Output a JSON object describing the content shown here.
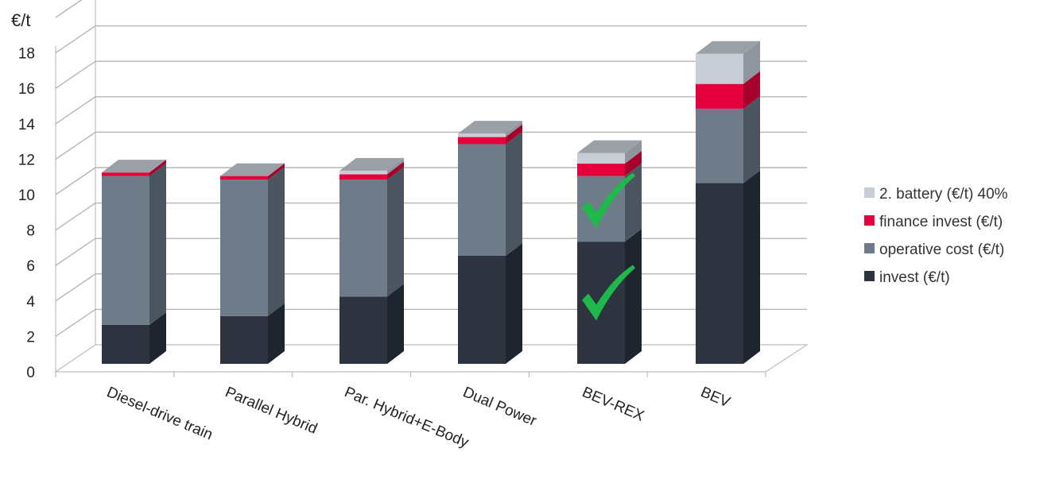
{
  "chart_data": {
    "type": "bar",
    "stacked": true,
    "three_d": true,
    "ylabel": "€/t",
    "ylim": [
      0,
      18
    ],
    "yticks": [
      0,
      2,
      4,
      6,
      8,
      10,
      12,
      14,
      16,
      18
    ],
    "grid": true,
    "legend_position": "right",
    "categories": [
      "Diesel-drive train",
      "Parallel Hybrid",
      "Par. Hybrid+E-Body",
      "Dual Power",
      "BEV-REX",
      "BEV"
    ],
    "series": [
      {
        "name": "invest (€/t)",
        "color": "#2d3440",
        "side_color": "#1f252e",
        "values": [
          2.2,
          2.7,
          3.8,
          6.1,
          6.9,
          10.2
        ]
      },
      {
        "name": "operative cost (€/t)",
        "color": "#6e7c8a",
        "side_color": "#4b555f",
        "values": [
          8.4,
          7.7,
          6.6,
          6.3,
          3.7,
          4.2
        ]
      },
      {
        "name": "finance invest (€/t)",
        "color": "#e3003c",
        "side_color": "#a8002c",
        "values": [
          0.2,
          0.2,
          0.3,
          0.4,
          0.7,
          1.4
        ]
      },
      {
        "name": "2. battery (€/t) 40%",
        "color": "#c9ced6",
        "side_color": "#8f959d",
        "values": [
          0,
          0,
          0.2,
          0.2,
          0.6,
          1.7
        ]
      }
    ],
    "annotations": [
      {
        "type": "checkmark",
        "category": "BEV-REX",
        "at_value": 3.7,
        "color": "#1fb84a"
      },
      {
        "type": "checkmark",
        "category": "BEV-REX",
        "at_value": 8.9,
        "color": "#1fb84a"
      }
    ]
  }
}
